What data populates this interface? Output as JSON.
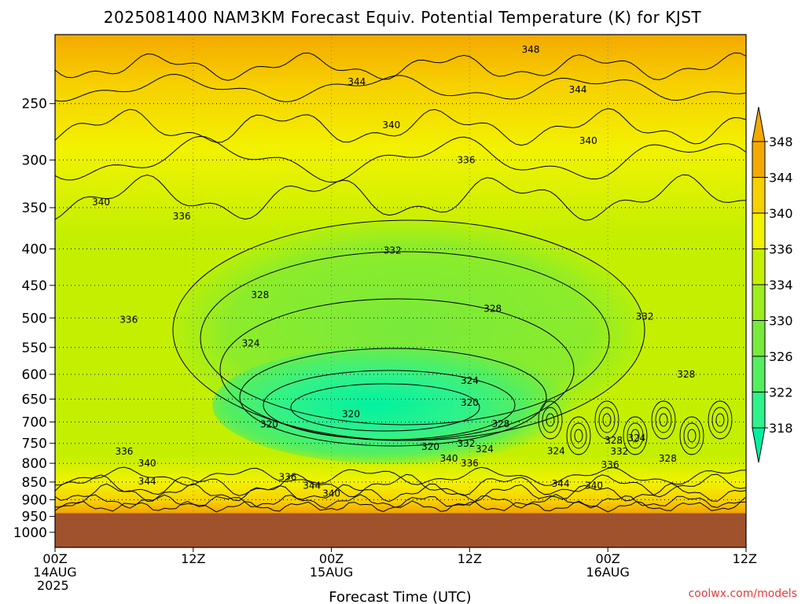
{
  "chart_data": {
    "type": "heatmap",
    "title": "2025081400 NAM3KM Forecast Equiv. Potential Temperature (K) for KJST",
    "xlabel": "Forecast Time (UTC)",
    "ylabel": "",
    "credit": "coolwx.com/models",
    "x_ticks": [
      {
        "hour": 0,
        "line1": "00Z",
        "line2": "14AUG",
        "line3": "2025"
      },
      {
        "hour": 12,
        "line1": "12Z",
        "line2": "",
        "line3": ""
      },
      {
        "hour": 24,
        "line1": "00Z",
        "line2": "15AUG",
        "line3": ""
      },
      {
        "hour": 36,
        "line1": "12Z",
        "line2": "",
        "line3": ""
      },
      {
        "hour": 48,
        "line1": "00Z",
        "line2": "16AUG",
        "line3": ""
      },
      {
        "hour": 60,
        "line1": "12Z",
        "line2": "",
        "line3": ""
      }
    ],
    "xlim": [
      0,
      60
    ],
    "y_ticks": [
      250,
      300,
      350,
      400,
      450,
      500,
      550,
      600,
      650,
      700,
      750,
      800,
      850,
      900,
      950,
      1000
    ],
    "y_tick_labels": [
      "250",
      "300",
      "350",
      "400",
      "450",
      "500",
      "550",
      "600",
      "650",
      "700",
      "750",
      "800",
      "850",
      "900",
      "950",
      "1000"
    ],
    "ylim": [
      200,
      1050
    ],
    "y_scale": "log",
    "grid": "dotted",
    "surface_pressure": 940,
    "colorbar": {
      "levels": [
        318,
        322,
        326,
        330,
        334,
        336,
        340,
        344,
        348
      ],
      "labels": [
        "318",
        "322",
        "326",
        "330",
        "334",
        "336",
        "340",
        "344",
        "348"
      ],
      "colors": [
        "#00f2a0",
        "#2ff28a",
        "#55ee5f",
        "#78ea3c",
        "#9cee1e",
        "#c4f000",
        "#f2f200",
        "#f7d000",
        "#f4a900"
      ]
    },
    "contour_labels": [
      {
        "text": "348",
        "hour": 41.3,
        "p": 210
      },
      {
        "text": "344",
        "hour": 26.2,
        "p": 233
      },
      {
        "text": "344",
        "hour": 45.4,
        "p": 239
      },
      {
        "text": "340",
        "hour": 29.2,
        "p": 268
      },
      {
        "text": "340",
        "hour": 46.3,
        "p": 282
      },
      {
        "text": "336",
        "hour": 35.7,
        "p": 300
      },
      {
        "text": "340",
        "hour": 4.0,
        "p": 344
      },
      {
        "text": "336",
        "hour": 11.0,
        "p": 360
      },
      {
        "text": "332",
        "hour": 29.3,
        "p": 402
      },
      {
        "text": "336",
        "hour": 6.4,
        "p": 503
      },
      {
        "text": "328",
        "hour": 17.8,
        "p": 464
      },
      {
        "text": "328",
        "hour": 38.0,
        "p": 485
      },
      {
        "text": "332",
        "hour": 51.2,
        "p": 498
      },
      {
        "text": "324",
        "hour": 17.0,
        "p": 543
      },
      {
        "text": "328",
        "hour": 54.8,
        "p": 600
      },
      {
        "text": "324",
        "hour": 36.0,
        "p": 612
      },
      {
        "text": "320",
        "hour": 36.0,
        "p": 658
      },
      {
        "text": "320",
        "hour": 25.7,
        "p": 682
      },
      {
        "text": "320",
        "hour": 18.6,
        "p": 705
      },
      {
        "text": "328",
        "hour": 38.7,
        "p": 704
      },
      {
        "text": "324",
        "hour": 50.5,
        "p": 737
      },
      {
        "text": "328",
        "hour": 48.5,
        "p": 743
      },
      {
        "text": "332",
        "hour": 35.7,
        "p": 751
      },
      {
        "text": "320",
        "hour": 32.6,
        "p": 758
      },
      {
        "text": "324",
        "hour": 37.3,
        "p": 764
      },
      {
        "text": "324",
        "hour": 43.5,
        "p": 769
      },
      {
        "text": "332",
        "hour": 49.0,
        "p": 770
      },
      {
        "text": "336",
        "hour": 6.0,
        "p": 770
      },
      {
        "text": "328",
        "hour": 53.2,
        "p": 788
      },
      {
        "text": "340",
        "hour": 34.2,
        "p": 788
      },
      {
        "text": "340",
        "hour": 8.0,
        "p": 800
      },
      {
        "text": "336",
        "hour": 36.0,
        "p": 800
      },
      {
        "text": "336",
        "hour": 48.2,
        "p": 804
      },
      {
        "text": "336",
        "hour": 20.2,
        "p": 836
      },
      {
        "text": "344",
        "hour": 8.0,
        "p": 848
      },
      {
        "text": "344",
        "hour": 22.3,
        "p": 860
      },
      {
        "text": "344",
        "hour": 43.9,
        "p": 855
      },
      {
        "text": "340",
        "hour": 46.8,
        "p": 860
      },
      {
        "text": "340",
        "hour": 24.0,
        "p": 882
      }
    ]
  }
}
